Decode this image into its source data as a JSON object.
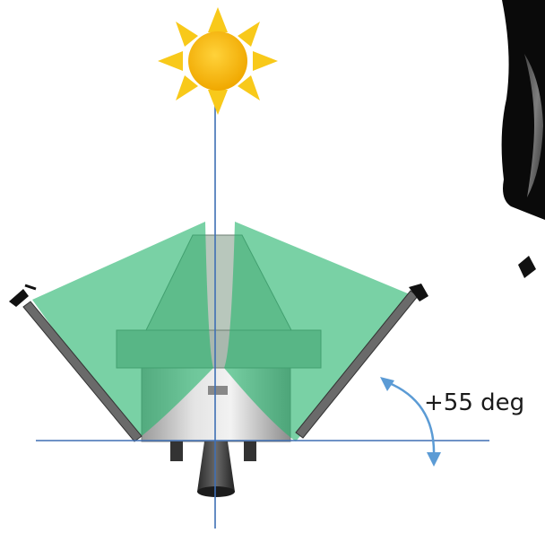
{
  "diagram": {
    "angle_label": "+55 deg",
    "colors": {
      "sun_body": "#f5b400",
      "sun_rays": "#f8c91a",
      "fov_fill": "#27b46d",
      "axis_line": "#3e6fb4",
      "angle_arrow": "#5b9bd5",
      "panel": "#555555",
      "module_body": "#c8c8c8",
      "background": "#ffffff"
    },
    "icons": [
      "sun-icon"
    ]
  }
}
